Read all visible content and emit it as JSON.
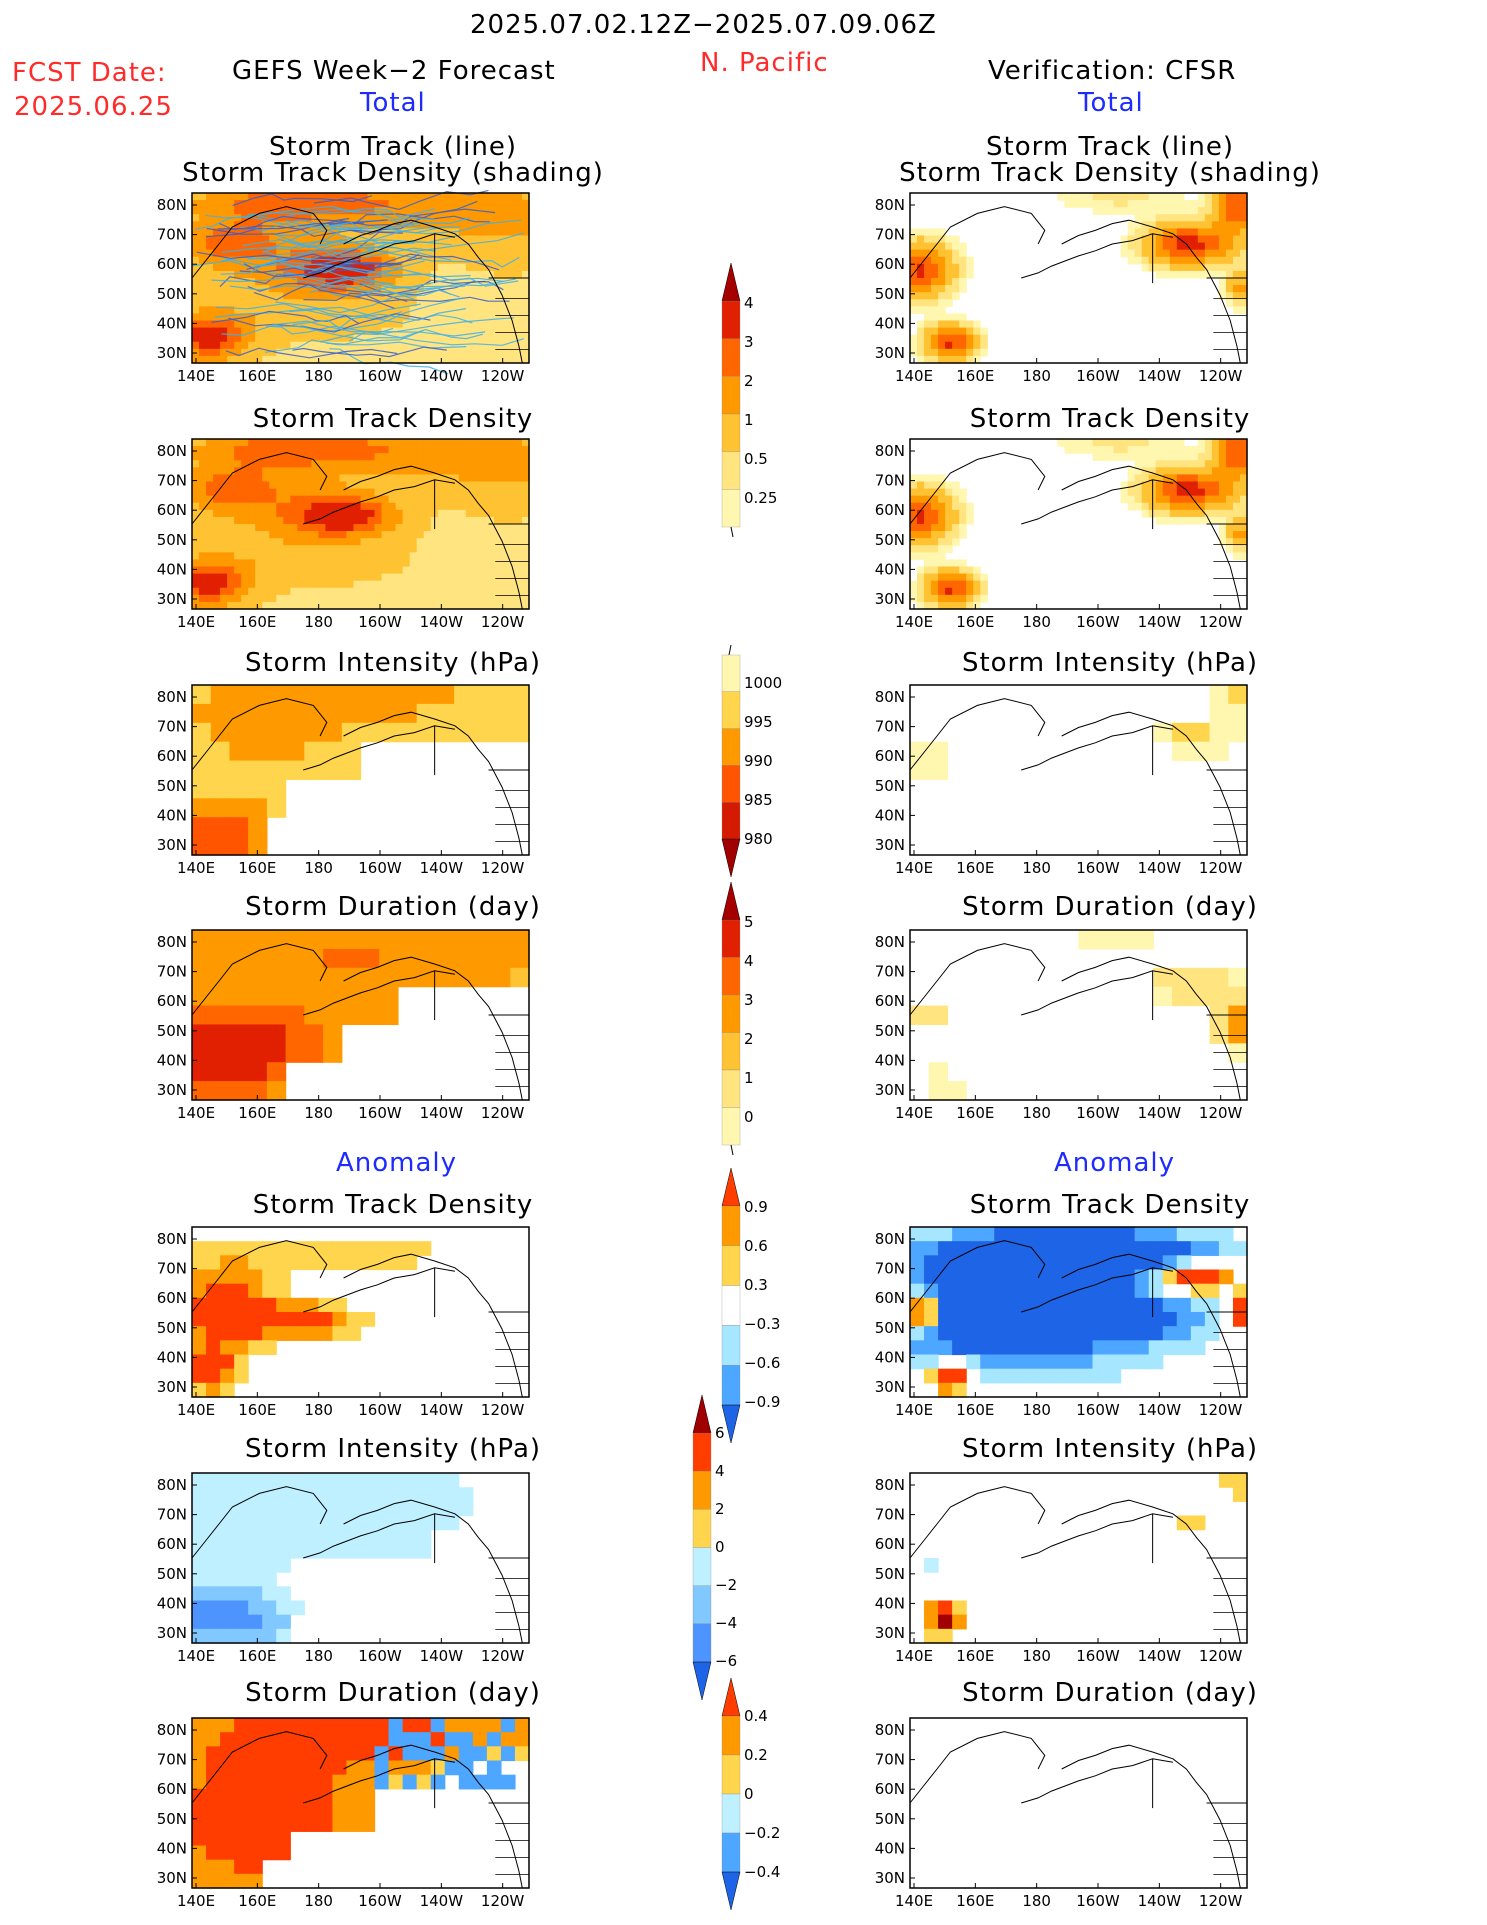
{
  "header": {
    "date_range": "2025.07.02.12Z−2025.07.09.06Z",
    "fcst_label": "FCST Date:",
    "fcst_date": "2025.06.25",
    "forecast_title": "GEFS Week−2 Forecast",
    "region": "N. Pacific",
    "verification_title": "Verification: CFSR",
    "total_label": "Total",
    "anomaly_label": "Anomaly"
  },
  "axes": {
    "lon_ticks": [
      "140E",
      "160E",
      "180",
      "160W",
      "140W",
      "120W"
    ],
    "lat_ticks": [
      "80N",
      "70N",
      "60N",
      "50N",
      "40N",
      "30N"
    ]
  },
  "panels": {
    "left": [
      {
        "title1": "Storm Track (line)",
        "title2": "Storm Track Density (shading)"
      },
      {
        "title1": "Storm Track Density"
      },
      {
        "title1": "Storm Intensity (hPa)"
      },
      {
        "title1": "Storm Duration (day)"
      },
      {
        "title1": "Storm Track Density"
      },
      {
        "title1": "Storm Intensity (hPa)"
      },
      {
        "title1": "Storm Duration (day)"
      }
    ],
    "right": [
      {
        "title1": "Storm Track (line)",
        "title2": "Storm Track Density (shading)"
      },
      {
        "title1": "Storm Track Density"
      },
      {
        "title1": "Storm Intensity (hPa)"
      },
      {
        "title1": "Storm Duration (day)"
      },
      {
        "title1": "Storm Track Density"
      },
      {
        "title1": "Storm Intensity (hPa)"
      },
      {
        "title1": "Storm Duration (day)"
      }
    ]
  },
  "colorbars": [
    {
      "name": "track-density",
      "labels": [
        "0.25",
        "0.5",
        "1",
        "2",
        "3",
        "4"
      ],
      "colors": [
        "#fff6b0",
        "#ffe480",
        "#ffc233",
        "#ff9900",
        "#ff6600",
        "#e02000",
        "#a50000"
      ]
    },
    {
      "name": "intensity",
      "labels": [
        "1000",
        "995",
        "990",
        "985",
        "980"
      ],
      "colors": [
        "#fff6b0",
        "#ffd54d",
        "#ff9900",
        "#ff5500",
        "#d41a00",
        "#a00000"
      ]
    },
    {
      "name": "duration",
      "labels": [
        "0",
        "1",
        "2",
        "3",
        "4",
        "5"
      ],
      "colors": [
        "#fff6b0",
        "#ffe480",
        "#ffc233",
        "#ff9900",
        "#ff6600",
        "#e02000",
        "#a50000"
      ]
    },
    {
      "name": "anom-density",
      "labels": [
        "0.9",
        "0.6",
        "0.3",
        "−0.3",
        "−0.6",
        "−0.9"
      ],
      "colors": [
        "#ff3d00",
        "#ff9900",
        "#ffd54d",
        "#ffffff",
        "#a6e6ff",
        "#4da6ff",
        "#1e64e6"
      ]
    },
    {
      "name": "anom-intensity",
      "labels": [
        "6",
        "4",
        "2",
        "0",
        "−2",
        "−4",
        "−6"
      ],
      "colors": [
        "#a00000",
        "#ff3d00",
        "#ff9900",
        "#ffd54d",
        "#bff0ff",
        "#80c8ff",
        "#4d94ff",
        "#1e64e6"
      ]
    },
    {
      "name": "anom-duration",
      "labels": [
        "0.4",
        "0.2",
        "0",
        "−0.2",
        "−0.4"
      ],
      "colors": [
        "#ff3d00",
        "#ff9900",
        "#ffd54d",
        "#bff0ff",
        "#4da6ff",
        "#1e64e6"
      ]
    }
  ],
  "chart_data": {
    "type": "heatmap",
    "title": "2025.07.02.12Z−2025.07.09.06Z N. Pacific",
    "xlabel": "",
    "ylabel": "",
    "x_range": [
      "140E",
      "120W"
    ],
    "y_range": [
      "25N",
      "85N"
    ],
    "series": [
      {
        "name": "GEFS Week−2 Forecast Total Storm Track Density",
        "max": 4
      },
      {
        "name": "GEFS Week−2 Forecast Total Storm Intensity (hPa)",
        "min": 980
      },
      {
        "name": "GEFS Week−2 Forecast Total Storm Duration (day)",
        "max": 5
      },
      {
        "name": "CFSR Total Storm Track Density",
        "max": 4
      },
      {
        "name": "CFSR Anomaly Storm Track Density",
        "min": -0.9,
        "max": 0.9
      },
      {
        "name": "GEFS Anomaly Storm Intensity (hPa)",
        "min": -6,
        "max": 6
      },
      {
        "name": "GEFS Anomaly Storm Duration (day)",
        "min": -0.4,
        "max": 0.4
      }
    ]
  }
}
